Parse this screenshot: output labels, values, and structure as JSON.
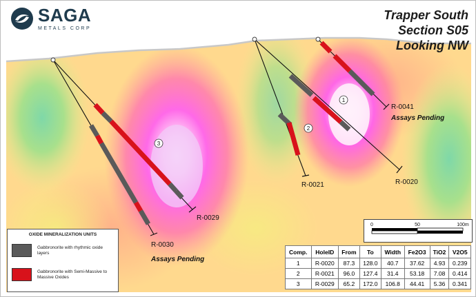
{
  "brand": {
    "name": "SAGA",
    "subtitle": "METALS CORP"
  },
  "section_title": {
    "line1": "Trapper South",
    "line2": "Section S05",
    "line3": "Looking NW"
  },
  "holes": [
    {
      "id": "R-0029",
      "label": "R-0029",
      "marker": "3"
    },
    {
      "id": "R-0030",
      "label": "R-0030",
      "note": "Assays Pending"
    },
    {
      "id": "R-0021",
      "label": "R-0021",
      "marker": "2"
    },
    {
      "id": "R-0020",
      "label": "R-0020",
      "marker": "1"
    },
    {
      "id": "R-0041",
      "label": "R-0041",
      "note": "Assays Pending"
    }
  ],
  "legend": {
    "title": "OXIDE MINERALIZATION UNITS",
    "items": [
      {
        "label": "Gabbronorite with rhythmic oxide layers",
        "color": "#5a5a5a"
      },
      {
        "label": "Gabbronorite with Semi-Massive to Massive Oxides",
        "color": "#d8121b"
      }
    ]
  },
  "scale": {
    "labels": [
      "0",
      "50",
      "100m"
    ]
  },
  "assay_table": {
    "headers": [
      "Comp.",
      "HoleID",
      "From",
      "To",
      "Width",
      "Fe2O3",
      "TiO2",
      "V2O5"
    ],
    "rows": [
      [
        "1",
        "R-0020",
        "87.3",
        "128.0",
        "40.7",
        "37.62",
        "4.93",
        "0.239"
      ],
      [
        "2",
        "R-0021",
        "96.0",
        "127.4",
        "31.4",
        "53.18",
        "7.08",
        "0.414"
      ],
      [
        "3",
        "R-0029",
        "65.2",
        "172.0",
        "106.8",
        "44.41",
        "5.36",
        "0.341"
      ]
    ]
  },
  "colors": {
    "intercept_high": "#d8121b",
    "intercept_low": "#5a5a5a",
    "anomaly_high": "#ff45e0",
    "background_field": "#ffd78c",
    "low_field": "#8ed894"
  }
}
